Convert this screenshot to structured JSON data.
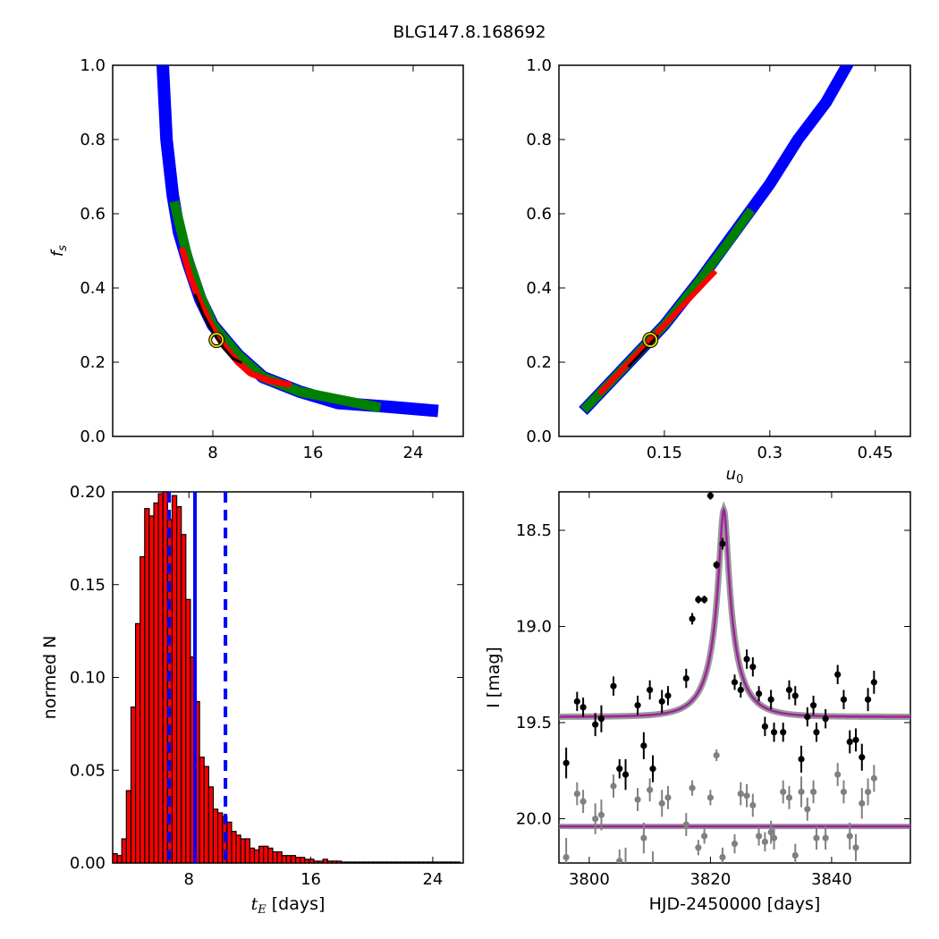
{
  "figure": {
    "title": "BLG147.8.168692"
  },
  "chart_data": [
    {
      "id": "fs_vs_tE",
      "type": "heatmap",
      "xlabel": "",
      "ylabel": "f_s",
      "xlim": [
        0,
        28
      ],
      "ylim": [
        0.0,
        1.0
      ],
      "xticks": [
        8,
        16,
        24
      ],
      "yticks": [
        0.0,
        0.2,
        0.4,
        0.6,
        0.8,
        1.0
      ],
      "contour_colors": [
        "#0000ff",
        "#008000",
        "#ff0000",
        "#000000"
      ],
      "contour_levels": [
        "outer",
        "2sigma",
        "1sigma",
        "core"
      ],
      "best_fit": {
        "x": 8.3,
        "y": 0.26
      },
      "regions": {
        "outer": [
          [
            4.0,
            1.0
          ],
          [
            4.3,
            0.8
          ],
          [
            4.8,
            0.65
          ],
          [
            5.3,
            0.55
          ],
          [
            6,
            0.47
          ],
          [
            7,
            0.37
          ],
          [
            8,
            0.3
          ],
          [
            10,
            0.22
          ],
          [
            12,
            0.16
          ],
          [
            15,
            0.12
          ],
          [
            18,
            0.09
          ],
          [
            22,
            0.08
          ],
          [
            25.5,
            0.07
          ]
        ],
        "2sigma": [
          [
            5,
            0.62
          ],
          [
            5.5,
            0.55
          ],
          [
            6,
            0.48
          ],
          [
            7,
            0.38
          ],
          [
            8,
            0.3
          ],
          [
            10,
            0.22
          ],
          [
            12,
            0.16
          ],
          [
            15,
            0.12
          ],
          [
            18,
            0.1
          ],
          [
            21,
            0.08
          ]
        ],
        "1sigma": [
          [
            5.6,
            0.5
          ],
          [
            6.2,
            0.43
          ],
          [
            7,
            0.36
          ],
          [
            8,
            0.29
          ],
          [
            9,
            0.24
          ],
          [
            10,
            0.2
          ],
          [
            11,
            0.17
          ],
          [
            12.5,
            0.15
          ],
          [
            14,
            0.14
          ]
        ],
        "core": [
          [
            6.6,
            0.38
          ],
          [
            7.2,
            0.33
          ],
          [
            8,
            0.28
          ],
          [
            8.8,
            0.24
          ],
          [
            9.6,
            0.21
          ],
          [
            10.2,
            0.2
          ]
        ]
      }
    },
    {
      "id": "fs_vs_u0",
      "type": "heatmap",
      "xlabel": "u_0",
      "ylabel": "",
      "xlim": [
        0.0,
        0.5
      ],
      "ylim": [
        0.0,
        1.0
      ],
      "xticks": [
        0.15,
        0.3,
        0.45
      ],
      "yticks": [
        0.0,
        0.2,
        0.4,
        0.6,
        0.8,
        1.0
      ],
      "best_fit": {
        "x": 0.13,
        "y": 0.26
      },
      "regions": {
        "outer": [
          [
            0.04,
            0.08
          ],
          [
            0.1,
            0.2
          ],
          [
            0.15,
            0.3
          ],
          [
            0.2,
            0.42
          ],
          [
            0.25,
            0.55
          ],
          [
            0.3,
            0.68
          ],
          [
            0.34,
            0.8
          ],
          [
            0.38,
            0.9
          ],
          [
            0.41,
            1.0
          ]
        ],
        "2sigma": [
          [
            0.04,
            0.08
          ],
          [
            0.1,
            0.2
          ],
          [
            0.15,
            0.3
          ],
          [
            0.2,
            0.42
          ],
          [
            0.24,
            0.52
          ],
          [
            0.27,
            0.6
          ]
        ],
        "1sigma": [
          [
            0.06,
            0.12
          ],
          [
            0.1,
            0.2
          ],
          [
            0.14,
            0.28
          ],
          [
            0.18,
            0.36
          ],
          [
            0.22,
            0.44
          ]
        ],
        "core": [
          [
            0.1,
            0.19
          ],
          [
            0.12,
            0.23
          ],
          [
            0.14,
            0.27
          ]
        ]
      }
    },
    {
      "id": "tE_histogram",
      "type": "bar",
      "xlabel": "t_E [days]",
      "ylabel": "normed N",
      "xlim": [
        3,
        26
      ],
      "ylim": [
        0.0,
        0.2
      ],
      "xticks": [
        8,
        16,
        24
      ],
      "yticks": [
        0.0,
        0.05,
        0.1,
        0.15,
        0.2
      ],
      "ytick_labels": [
        "0.00",
        "0.05",
        "0.10",
        "0.15",
        "0.20"
      ],
      "bin_start": 3.0,
      "bin_width": 0.3,
      "values": [
        0.005,
        0.004,
        0.013,
        0.039,
        0.084,
        0.129,
        0.165,
        0.191,
        0.187,
        0.194,
        0.199,
        0.2,
        0.185,
        0.198,
        0.192,
        0.177,
        0.142,
        0.111,
        0.087,
        0.057,
        0.052,
        0.041,
        0.029,
        0.027,
        0.025,
        0.022,
        0.017,
        0.015,
        0.013,
        0.013,
        0.008,
        0.007,
        0.009,
        0.009,
        0.008,
        0.006,
        0.006,
        0.004,
        0.004,
        0.004,
        0.003,
        0.003,
        0.002,
        0.002,
        0.001,
        0.001,
        0.002,
        0.001,
        0.001,
        0.001,
        0.0005,
        0.0005,
        0.0005,
        0.0005,
        0.0005,
        0.0005,
        0.0005,
        0.0005,
        0.0005,
        0.0005,
        0.0005,
        0.0005,
        0.0005,
        0.0005,
        0.0005,
        0.0005,
        0.0005,
        0.0005,
        0.0005,
        0.0005,
        0.0005,
        0.0005,
        0.0005,
        0.0005,
        0.0005,
        0.0005
      ],
      "bar_color": "#ff0000",
      "vlines": [
        {
          "x": 6.7,
          "style": "dashed",
          "color": "#0000ff"
        },
        {
          "x": 8.4,
          "style": "solid",
          "color": "#0000ff"
        },
        {
          "x": 10.4,
          "style": "dashed",
          "color": "#0000ff"
        }
      ]
    },
    {
      "id": "lightcurve",
      "type": "scatter",
      "xlabel": "HJD-2450000 [days]",
      "ylabel": "I [mag]",
      "xlim": [
        3795,
        3853
      ],
      "ylim": [
        20.23,
        18.3
      ],
      "xticks": [
        3800,
        3820,
        3840
      ],
      "yticks": [
        18.5,
        19.0,
        19.5,
        20.0
      ],
      "ytick_labels": [
        "18.5",
        "19.0",
        "19.5",
        "20.0"
      ],
      "model": {
        "t0": 3822.2,
        "tE": 1.6,
        "u0": 0.134,
        "baseline": 19.47,
        "color": "#a020a0"
      },
      "model2": {
        "baseline": 20.04,
        "color": "#a020a0"
      },
      "series": [
        {
          "name": "",
          "color": "#000000",
          "points": [
            [
              3796.2,
              19.71,
              0.08
            ],
            [
              3798.0,
              19.39,
              0.05
            ],
            [
              3799.0,
              19.42,
              0.05
            ],
            [
              3801.0,
              19.51,
              0.06
            ],
            [
              3802.0,
              19.48,
              0.07
            ],
            [
              3804.0,
              19.31,
              0.05
            ],
            [
              3805.0,
              19.74,
              0.05
            ],
            [
              3806.0,
              19.77,
              0.08
            ],
            [
              3808.0,
              19.41,
              0.05
            ],
            [
              3809.0,
              19.62,
              0.07
            ],
            [
              3810.0,
              19.33,
              0.05
            ],
            [
              3810.5,
              19.74,
              0.07
            ],
            [
              3812.0,
              19.39,
              0.06
            ],
            [
              3813.0,
              19.36,
              0.05
            ],
            [
              3816.0,
              19.27,
              0.05
            ],
            [
              3817.0,
              18.96,
              0.03
            ],
            [
              3818.0,
              18.86,
              0.02
            ],
            [
              3819.0,
              18.86,
              0.02
            ],
            [
              3820.0,
              18.32,
              0.02
            ],
            [
              3821.0,
              18.68,
              0.02
            ],
            [
              3822.0,
              18.57,
              0.03
            ],
            [
              3824.0,
              19.29,
              0.04
            ],
            [
              3825.0,
              19.33,
              0.04
            ],
            [
              3826.0,
              19.17,
              0.05
            ],
            [
              3827.0,
              19.21,
              0.05
            ],
            [
              3828.0,
              19.35,
              0.04
            ],
            [
              3829.0,
              19.52,
              0.05
            ],
            [
              3830.0,
              19.38,
              0.05
            ],
            [
              3830.5,
              19.55,
              0.05
            ],
            [
              3832.0,
              19.55,
              0.05
            ],
            [
              3833.0,
              19.33,
              0.05
            ],
            [
              3834.0,
              19.36,
              0.05
            ],
            [
              3835.0,
              19.69,
              0.07
            ],
            [
              3836.0,
              19.47,
              0.05
            ],
            [
              3837.0,
              19.41,
              0.05
            ],
            [
              3837.5,
              19.55,
              0.05
            ],
            [
              3839.0,
              19.48,
              0.05
            ],
            [
              3841.0,
              19.25,
              0.05
            ],
            [
              3842.0,
              19.38,
              0.05
            ],
            [
              3843.0,
              19.6,
              0.06
            ],
            [
              3844.0,
              19.59,
              0.06
            ],
            [
              3845.0,
              19.68,
              0.07
            ],
            [
              3846.0,
              19.38,
              0.06
            ],
            [
              3847.0,
              19.29,
              0.06
            ]
          ]
        },
        {
          "name": "",
          "color": "#808080",
          "points": [
            [
              3796.2,
              20.2,
              0.1
            ],
            [
              3798.0,
              19.87,
              0.06
            ],
            [
              3799.0,
              19.91,
              0.06
            ],
            [
              3801.0,
              20.0,
              0.08
            ],
            [
              3802.0,
              19.98,
              0.08
            ],
            [
              3804.0,
              19.83,
              0.06
            ],
            [
              3805.0,
              20.22,
              0.06
            ],
            [
              3806.0,
              20.25,
              0.1
            ],
            [
              3808.0,
              19.9,
              0.06
            ],
            [
              3809.0,
              20.1,
              0.08
            ],
            [
              3810.0,
              19.85,
              0.06
            ],
            [
              3810.5,
              20.25,
              0.08
            ],
            [
              3812.0,
              19.92,
              0.07
            ],
            [
              3813.0,
              19.89,
              0.06
            ],
            [
              3816.0,
              20.03,
              0.06
            ],
            [
              3817.0,
              19.84,
              0.04
            ],
            [
              3818.0,
              20.15,
              0.04
            ],
            [
              3819.0,
              20.09,
              0.04
            ],
            [
              3820.0,
              19.89,
              0.04
            ],
            [
              3821.0,
              19.67,
              0.03
            ],
            [
              3822.0,
              20.2,
              0.05
            ],
            [
              3824.0,
              20.13,
              0.05
            ],
            [
              3825.0,
              19.87,
              0.06
            ],
            [
              3826.0,
              19.88,
              0.06
            ],
            [
              3827.0,
              19.93,
              0.06
            ],
            [
              3828.0,
              20.09,
              0.05
            ],
            [
              3829.0,
              20.12,
              0.05
            ],
            [
              3830.0,
              20.07,
              0.06
            ],
            [
              3830.5,
              20.1,
              0.06
            ],
            [
              3832.0,
              19.86,
              0.06
            ],
            [
              3833.0,
              19.89,
              0.06
            ],
            [
              3834.0,
              20.19,
              0.06
            ],
            [
              3835.0,
              19.86,
              0.08
            ],
            [
              3836.0,
              19.95,
              0.06
            ],
            [
              3837.0,
              19.86,
              0.06
            ],
            [
              3837.5,
              20.1,
              0.06
            ],
            [
              3839.0,
              20.1,
              0.06
            ],
            [
              3841.0,
              19.77,
              0.06
            ],
            [
              3842.0,
              19.86,
              0.06
            ],
            [
              3843.0,
              20.09,
              0.07
            ],
            [
              3844.0,
              20.15,
              0.07
            ],
            [
              3845.0,
              19.92,
              0.08
            ],
            [
              3846.0,
              19.86,
              0.07
            ],
            [
              3847.0,
              19.79,
              0.07
            ]
          ]
        }
      ]
    }
  ]
}
